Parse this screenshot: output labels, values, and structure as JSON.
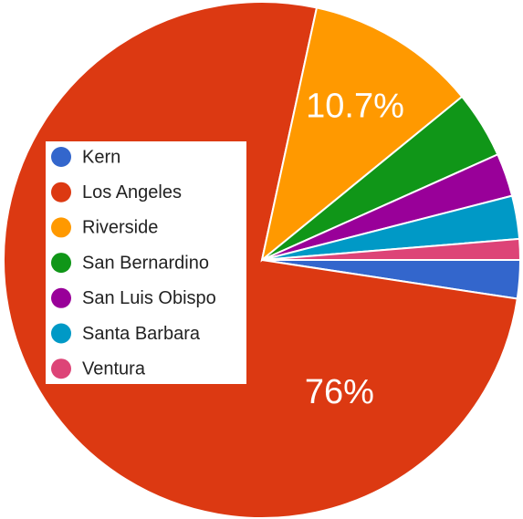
{
  "chart_data": {
    "type": "pie",
    "categories": [
      "Kern",
      "Los Angeles",
      "Riverside",
      "San Bernardino",
      "San Luis Obispo",
      "Santa Barbara",
      "Ventura"
    ],
    "values": [
      2.4,
      76,
      10.7,
      4.2,
      2.7,
      2.7,
      1.3
    ],
    "value_labels": [
      null,
      "76%",
      "10.7%",
      null,
      null,
      null,
      null
    ],
    "colors": [
      "#3366cc",
      "#dc3912",
      "#ff9900",
      "#109618",
      "#990099",
      "#0099c6",
      "#dd4477"
    ],
    "legend": "left"
  }
}
